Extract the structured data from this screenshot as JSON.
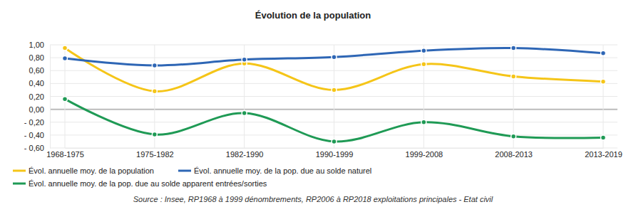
{
  "chart_data": {
    "type": "line",
    "title": "Évolution de la population",
    "source": "Source : Insee, RP1968 à 1999 dénombrements, RP2006 à RP2018 exploitations principales - Etat civil",
    "categories": [
      "1968-1975",
      "1975-1982",
      "1982-1990",
      "1990-1999",
      "1999-2008",
      "2008-2013",
      "2013-2019"
    ],
    "series": [
      {
        "name": "Évol. annuelle moy. de la population",
        "color": "#f5c518",
        "marker": "circle",
        "values": [
          0.95,
          0.28,
          0.71,
          0.3,
          0.7,
          0.51,
          0.43
        ]
      },
      {
        "name": "Évol. annuelle moy. de la pop. due au solde naturel",
        "color": "#2e66b5",
        "marker": "circle",
        "values": [
          0.79,
          0.68,
          0.77,
          0.81,
          0.91,
          0.95,
          0.87
        ]
      },
      {
        "name": "Évol. annuelle moy. de la pop. due au solde apparent entrées/sorties",
        "color": "#1f9a55",
        "marker": "circle",
        "values": [
          0.16,
          -0.39,
          -0.06,
          -0.5,
          -0.2,
          -0.42,
          -0.44
        ]
      }
    ],
    "ylim": [
      -0.6,
      1.0
    ],
    "yticks": [
      {
        "value": 1.0,
        "label": "1,00"
      },
      {
        "value": 0.8,
        "label": "0,80"
      },
      {
        "value": 0.6,
        "label": "0,60"
      },
      {
        "value": 0.4,
        "label": "0,40"
      },
      {
        "value": 0.2,
        "label": "0,20"
      },
      {
        "value": 0,
        "label": "0,00"
      },
      {
        "value": -0.2,
        "label": "- 0,20"
      },
      {
        "value": -0.4,
        "label": "- 0,40"
      },
      {
        "value": -0.6,
        "label": "- 0,60"
      }
    ],
    "grid": true,
    "legend": "bottom"
  }
}
